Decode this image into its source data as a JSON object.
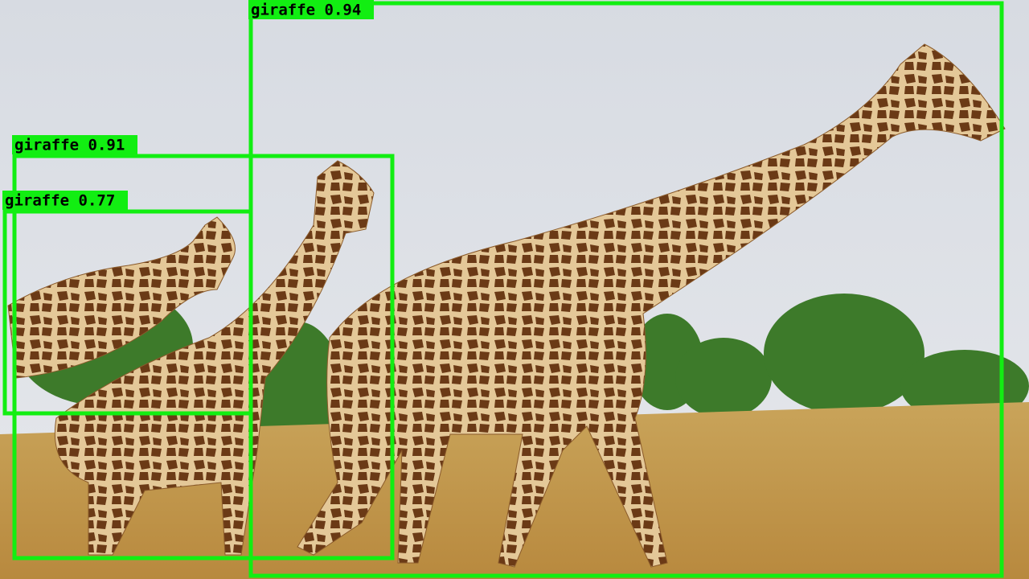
{
  "detections": [
    {
      "label": "giraffe 0.94"
    },
    {
      "label": "giraffe 0.91"
    },
    {
      "label": "giraffe 0.77"
    }
  ]
}
